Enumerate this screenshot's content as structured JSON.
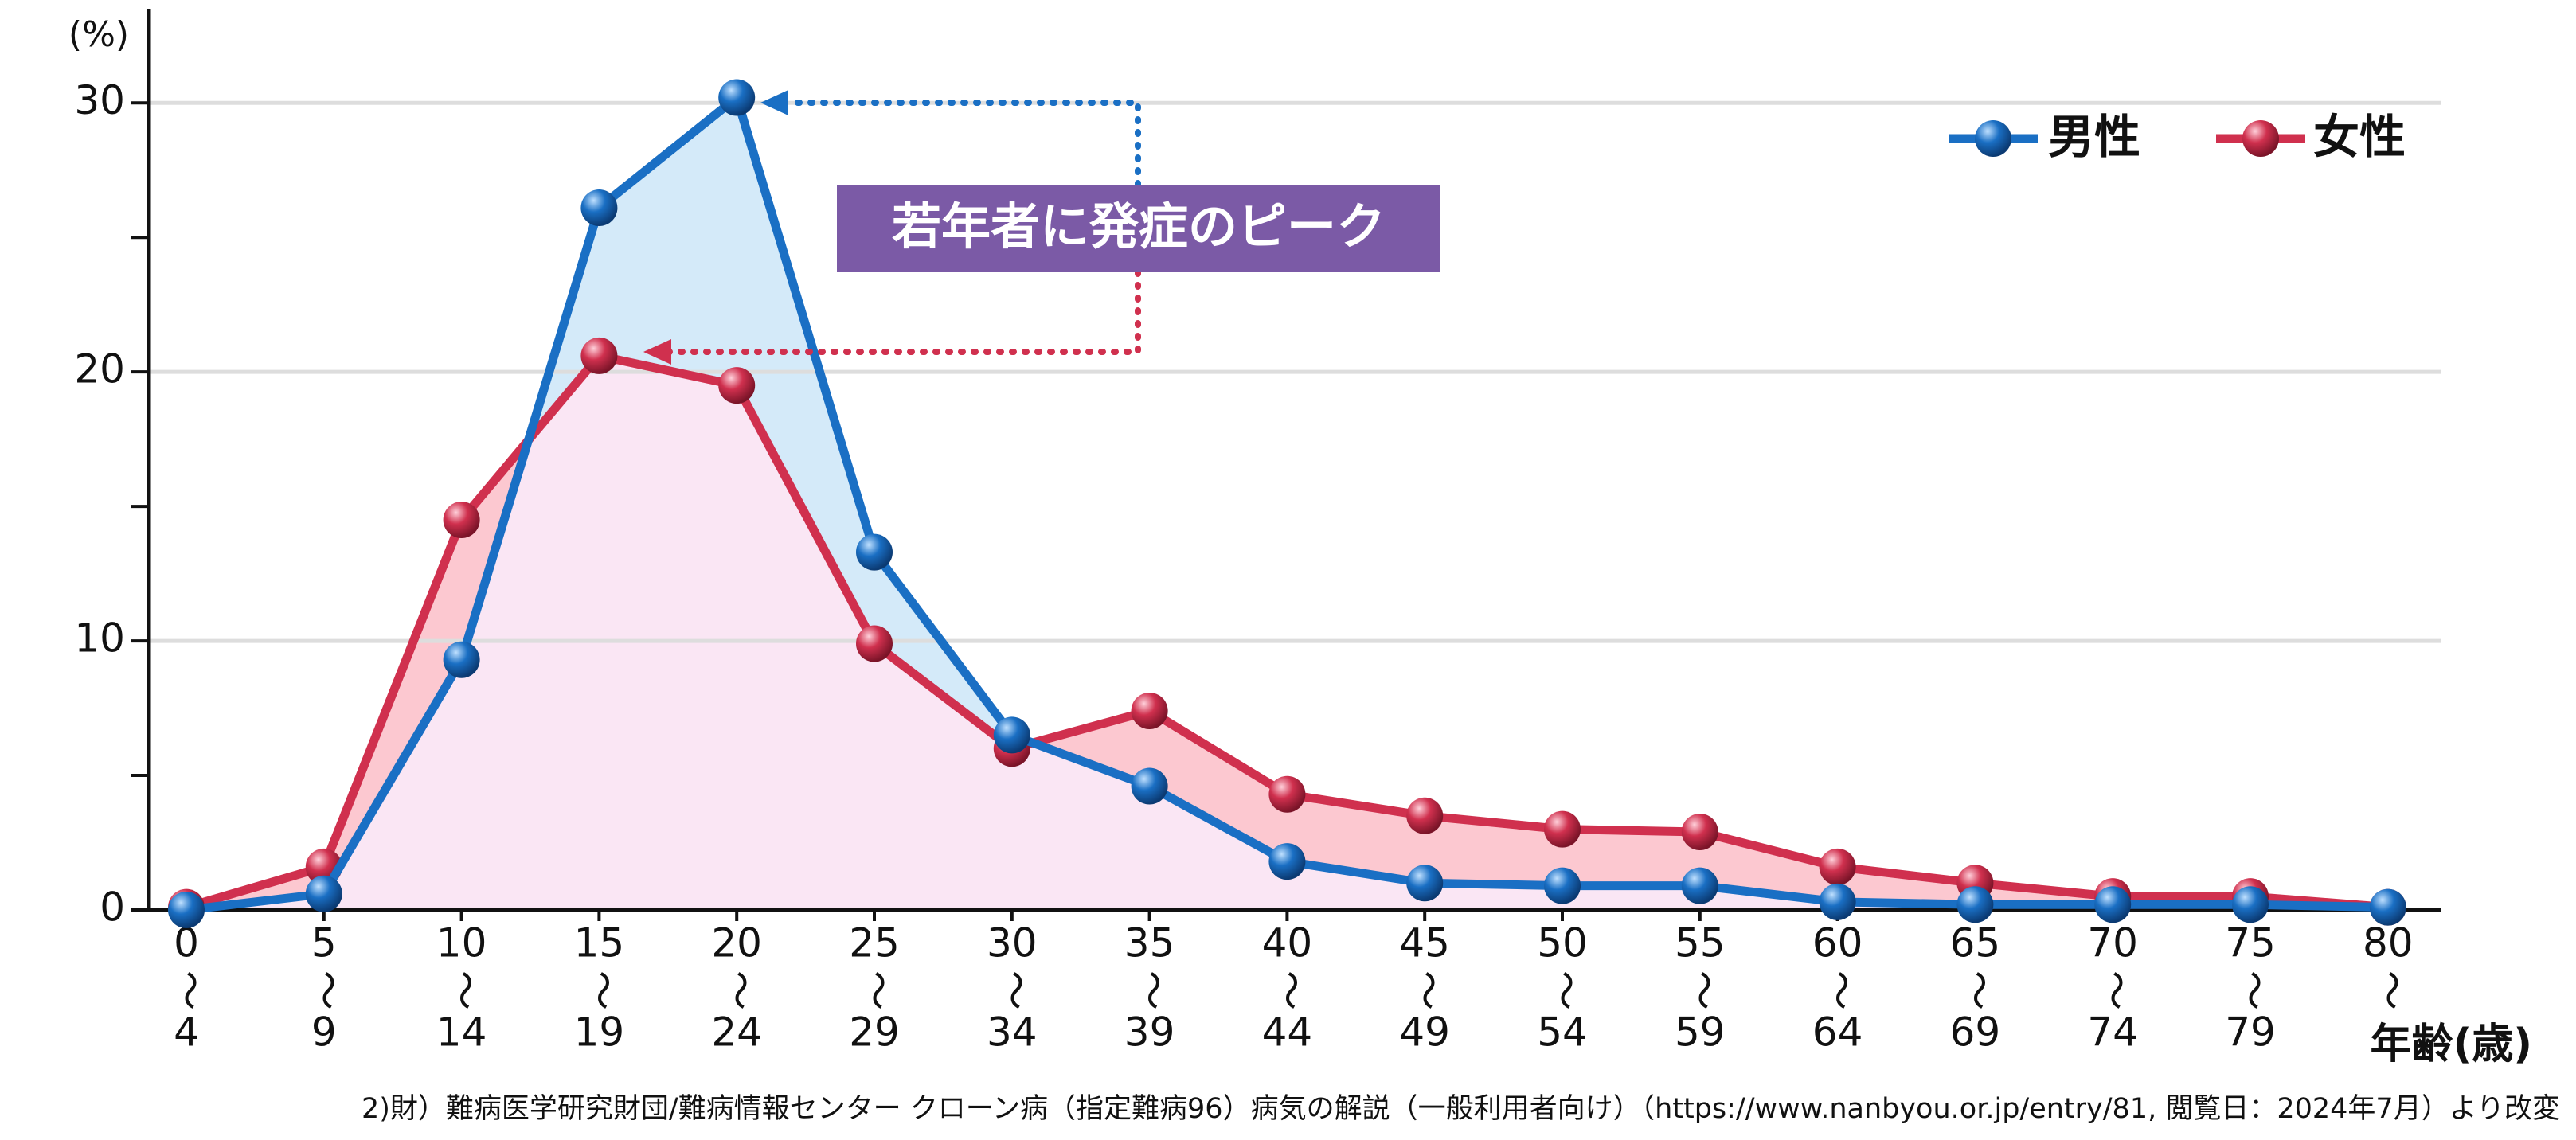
{
  "chart_data": {
    "type": "line",
    "y_unit": "(%)",
    "x_axis_label": "年齢(歳)",
    "annotation": "若年者に発症のピーク",
    "source": "2)財）難病医学研究財団/難病情報センター クローン病（指定難病96）病気の解説（一般利用者向け）（https://www.nanbyou.or.jp/entry/81, 閲覧日：2024年7月）より改変",
    "categories": [
      [
        "0",
        "〜",
        "4"
      ],
      [
        "5",
        "〜",
        "9"
      ],
      [
        "10",
        "〜",
        "14"
      ],
      [
        "15",
        "〜",
        "19"
      ],
      [
        "20",
        "〜",
        "24"
      ],
      [
        "25",
        "〜",
        "29"
      ],
      [
        "30",
        "〜",
        "34"
      ],
      [
        "35",
        "〜",
        "39"
      ],
      [
        "40",
        "〜",
        "44"
      ],
      [
        "45",
        "〜",
        "49"
      ],
      [
        "50",
        "〜",
        "54"
      ],
      [
        "55",
        "〜",
        "59"
      ],
      [
        "60",
        "〜",
        "64"
      ],
      [
        "65",
        "〜",
        "69"
      ],
      [
        "70",
        "〜",
        "74"
      ],
      [
        "75",
        "〜",
        "79"
      ],
      [
        "80",
        "〜"
      ]
    ],
    "series": [
      {
        "name": "男性",
        "color": "#1a6fc4",
        "fill": "#d4eaf9",
        "values": [
          0,
          0.6,
          9.3,
          26.1,
          30.2,
          13.3,
          6.5,
          4.6,
          1.8,
          1.0,
          0.9,
          0.9,
          0.3,
          0.2,
          0.2,
          0.2,
          0.1
        ]
      },
      {
        "name": "女性",
        "color": "#d0304e",
        "fill": "#fcc8d0",
        "values": [
          0.1,
          1.6,
          14.5,
          20.6,
          19.5,
          9.9,
          6.0,
          7.4,
          4.3,
          3.5,
          3.0,
          2.9,
          1.6,
          1.0,
          0.5,
          0.5,
          0.1
        ]
      }
    ],
    "overlap_fill": "#fae6f4",
    "ylim": [
      0,
      33.5
    ],
    "yticks": [
      0,
      10,
      20,
      30
    ],
    "minor_yticks": [
      5,
      15,
      25
    ],
    "grid": true
  }
}
